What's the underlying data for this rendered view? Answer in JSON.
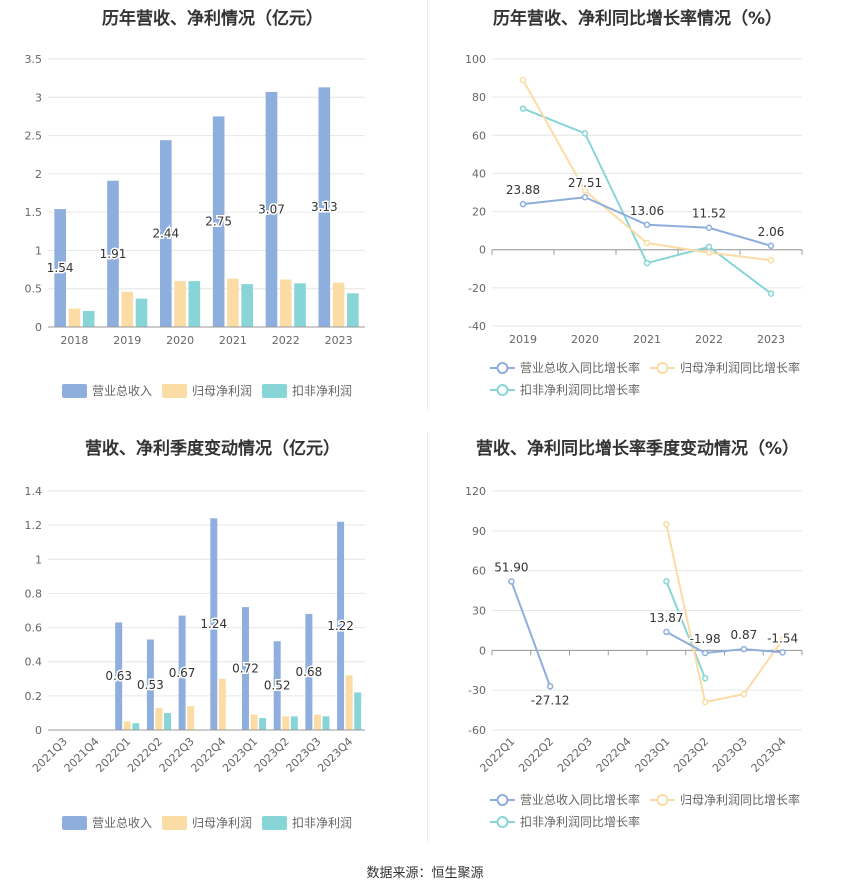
{
  "source": "数据来源：恒生聚源",
  "chart_data": [
    {
      "id": "annual-revenue-profit",
      "type": "bar",
      "title": "历年营收、净利情况（亿元）",
      "categories": [
        "2018",
        "2019",
        "2020",
        "2021",
        "2022",
        "2023"
      ],
      "ylim": [
        0,
        3.5
      ],
      "yticks": [
        "0",
        "0.5",
        "1",
        "1.5",
        "2",
        "2.5",
        "3",
        "3.5"
      ],
      "series": [
        {
          "name": "营业总收入",
          "color": "#8eaedd",
          "values": [
            1.54,
            1.91,
            2.44,
            2.75,
            3.07,
            3.13
          ],
          "labels": [
            "1.54",
            "1.91",
            "2.44",
            "2.75",
            "3.07",
            "3.13"
          ]
        },
        {
          "name": "归母净利润",
          "color": "#fcdca5",
          "values": [
            0.24,
            0.46,
            0.6,
            0.63,
            0.62,
            0.58
          ]
        },
        {
          "name": "扣非净利润",
          "color": "#88d5d8",
          "values": [
            0.21,
            0.37,
            0.6,
            0.56,
            0.57,
            0.44
          ]
        }
      ],
      "legend": "bottom"
    },
    {
      "id": "annual-growth",
      "type": "line",
      "title": "历年营收、净利同比增长率情况（%）",
      "categories": [
        "2019",
        "2020",
        "2021",
        "2022",
        "2023"
      ],
      "ylim": [
        -40,
        100
      ],
      "yticks": [
        "-40",
        "-20",
        "0",
        "20",
        "40",
        "60",
        "80",
        "100"
      ],
      "series": [
        {
          "name": "营业总收入同比增长率",
          "color": "#8eaedd",
          "values": [
            23.88,
            27.51,
            13.06,
            11.52,
            2.06
          ],
          "labels": [
            "23.88",
            "27.51",
            "13.06",
            "11.52",
            "2.06"
          ]
        },
        {
          "name": "归母净利润同比增长率",
          "color": "#fcdca5",
          "values": [
            89,
            31,
            3.5,
            -1.5,
            -5.5
          ]
        },
        {
          "name": "扣非净利润同比增长率",
          "color": "#88d5d8",
          "values": [
            74,
            61,
            -7,
            1.5,
            -23
          ]
        }
      ],
      "legend": "bottom"
    },
    {
      "id": "quarterly-revenue-profit",
      "type": "bar",
      "title": "营收、净利季度变动情况（亿元）",
      "categories": [
        "2021Q3",
        "2021Q4",
        "2022Q1",
        "2022Q2",
        "2022Q3",
        "2022Q4",
        "2023Q1",
        "2023Q2",
        "2023Q3",
        "2023Q4"
      ],
      "ylim": [
        0,
        1.4
      ],
      "yticks": [
        "0",
        "0.2",
        "0.4",
        "0.6",
        "0.8",
        "1",
        "1.2",
        "1.4"
      ],
      "series": [
        {
          "name": "营业总收入",
          "color": "#8eaedd",
          "values": [
            null,
            null,
            0.63,
            0.53,
            0.67,
            1.24,
            0.72,
            0.52,
            0.68,
            1.22
          ],
          "labels": [
            null,
            null,
            "0.63",
            "0.53",
            "0.67",
            "1.24",
            "0.72",
            "0.52",
            "0.68",
            "1.22"
          ]
        },
        {
          "name": "归母净利润",
          "color": "#fcdca5",
          "values": [
            null,
            null,
            0.05,
            0.13,
            0.14,
            0.3,
            0.09,
            0.08,
            0.09,
            0.32
          ]
        },
        {
          "name": "扣非净利润",
          "color": "#88d5d8",
          "values": [
            null,
            null,
            0.04,
            0.1,
            null,
            null,
            0.07,
            0.08,
            0.08,
            0.22
          ]
        }
      ],
      "legend": "bottom"
    },
    {
      "id": "quarterly-growth",
      "type": "line",
      "title": "营收、净利同比增长率季度变动情况（%）",
      "categories": [
        "2022Q1",
        "2022Q2",
        "2022Q3",
        "2022Q4",
        "2023Q1",
        "2023Q2",
        "2023Q3",
        "2023Q4"
      ],
      "ylim": [
        -60,
        120
      ],
      "yticks": [
        "-60",
        "-30",
        "0",
        "30",
        "60",
        "90",
        "120"
      ],
      "series": [
        {
          "name": "营业总收入同比增长率",
          "color": "#8eaedd",
          "values": [
            51.9,
            -27.12,
            null,
            null,
            13.87,
            -1.98,
            0.87,
            -1.54
          ],
          "labels": [
            "51.90",
            "-27.12",
            null,
            null,
            "13.87",
            "-1.98",
            "0.87",
            "-1.54"
          ]
        },
        {
          "name": "归母净利润同比增长率",
          "color": "#fcdca5",
          "values": [
            null,
            null,
            null,
            null,
            95,
            -39,
            -33,
            8
          ]
        },
        {
          "name": "扣非净利润同比增长率",
          "color": "#88d5d8",
          "values": [
            null,
            null,
            null,
            null,
            52,
            -21,
            null,
            null
          ]
        }
      ],
      "legend": "bottom"
    }
  ]
}
